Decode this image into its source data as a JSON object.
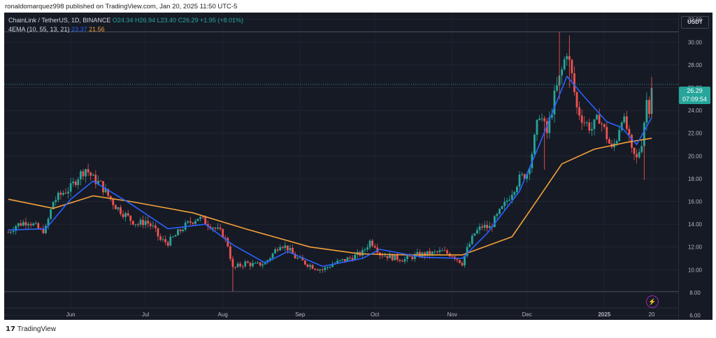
{
  "publish_line": "ronaldomarquez998 published on TradingView.com, Jan 20, 2025 11:50 UTC-5",
  "legend": {
    "symbol": "ChainLink / TetherUS, 1D, BINANCE",
    "ohlc": "O24.34 H26.94 L23.40 C26.29 +1.95 (+8.01%)",
    "ema_label": "4EMA (10, 55, 13, 21)",
    "ema_fast_value": "23.37",
    "ema_slow_value": "21.56"
  },
  "currency": "USDT",
  "last_price": "26.29",
  "countdown": "07:09:54",
  "footer_brand": "TradingView",
  "colors": {
    "up": "#26a69a",
    "down": "#ef5350",
    "ema_fast": "#2962ff",
    "ema_slow": "#f2a03a",
    "background": "#161a25"
  },
  "chart_data": {
    "type": "candlestick",
    "y_ticks": [
      "32.00",
      "30.00",
      "28.00",
      "26.00",
      "24.00",
      "22.00",
      "20.00",
      "18.00",
      "16.00",
      "14.00",
      "12.00",
      "10.00",
      "8.00",
      "6.00"
    ],
    "ylim": [
      5.6,
      32.6
    ],
    "x_ticks": [
      "Jun",
      "Jul",
      "Aug",
      "Sep",
      "Oct",
      "Nov",
      "Dec",
      "2025",
      "20"
    ],
    "date_range": [
      "2024-05-07",
      "2025-01-20"
    ],
    "x_tick_dates": [
      "2024-06-01",
      "2024-07-01",
      "2024-08-01",
      "2024-09-01",
      "2024-10-01",
      "2024-11-01",
      "2024-12-01",
      "2025-01-01",
      "2025-01-20"
    ],
    "horizontal_lines": [
      30.9,
      8.1,
      26.29
    ],
    "close_path": [
      [
        "2024-05-07",
        13.3
      ],
      [
        "2024-05-10",
        13.9
      ],
      [
        "2024-05-15",
        14.3
      ],
      [
        "2024-05-20",
        13.4
      ],
      [
        "2024-05-22",
        13.6
      ],
      [
        "2024-05-25",
        16.0
      ],
      [
        "2024-05-29",
        16.8
      ],
      [
        "2024-06-01",
        17.2
      ],
      [
        "2024-06-04",
        18.2
      ],
      [
        "2024-06-07",
        18.9
      ],
      [
        "2024-06-10",
        18.0
      ],
      [
        "2024-06-13",
        17.5
      ],
      [
        "2024-06-16",
        16.5
      ],
      [
        "2024-06-19",
        15.6
      ],
      [
        "2024-06-22",
        15.0
      ],
      [
        "2024-06-25",
        14.4
      ],
      [
        "2024-06-28",
        14.0
      ],
      [
        "2024-07-01",
        14.3
      ],
      [
        "2024-07-04",
        13.7
      ],
      [
        "2024-07-07",
        12.6
      ],
      [
        "2024-07-10",
        12.4
      ],
      [
        "2024-07-13",
        13.0
      ],
      [
        "2024-07-16",
        13.7
      ],
      [
        "2024-07-19",
        14.2
      ],
      [
        "2024-07-22",
        14.6
      ],
      [
        "2024-07-25",
        14.2
      ],
      [
        "2024-07-28",
        13.8
      ],
      [
        "2024-08-01",
        13.1
      ],
      [
        "2024-08-03",
        12.2
      ],
      [
        "2024-08-05",
        10.1
      ],
      [
        "2024-08-07",
        10.3
      ],
      [
        "2024-08-10",
        10.6
      ],
      [
        "2024-08-14",
        10.4
      ],
      [
        "2024-08-18",
        10.6
      ],
      [
        "2024-08-21",
        11.4
      ],
      [
        "2024-08-24",
        12.3
      ],
      [
        "2024-08-27",
        11.9
      ],
      [
        "2024-08-30",
        11.1
      ],
      [
        "2024-09-03",
        10.6
      ],
      [
        "2024-09-07",
        10.2
      ],
      [
        "2024-09-10",
        10.0
      ],
      [
        "2024-09-14",
        10.5
      ],
      [
        "2024-09-18",
        10.8
      ],
      [
        "2024-09-22",
        11.1
      ],
      [
        "2024-09-26",
        11.5
      ],
      [
        "2024-09-29",
        12.5
      ],
      [
        "2024-10-01",
        12.2
      ],
      [
        "2024-10-03",
        11.4
      ],
      [
        "2024-10-08",
        11.1
      ],
      [
        "2024-10-13",
        10.9
      ],
      [
        "2024-10-18",
        11.3
      ],
      [
        "2024-10-23",
        11.4
      ],
      [
        "2024-10-28",
        11.6
      ],
      [
        "2024-11-01",
        11.3
      ],
      [
        "2024-11-05",
        10.6
      ],
      [
        "2024-11-07",
        11.8
      ],
      [
        "2024-11-10",
        13.2
      ],
      [
        "2024-11-13",
        13.8
      ],
      [
        "2024-11-16",
        13.7
      ],
      [
        "2024-11-19",
        14.7
      ],
      [
        "2024-11-22",
        15.7
      ],
      [
        "2024-11-25",
        16.9
      ],
      [
        "2024-11-28",
        18.0
      ],
      [
        "2024-12-01",
        18.5
      ],
      [
        "2024-12-03",
        20.3
      ],
      [
        "2024-12-06",
        23.8
      ],
      [
        "2024-12-09",
        22.0
      ],
      [
        "2024-12-12",
        25.2
      ],
      [
        "2024-12-15",
        27.5
      ],
      [
        "2024-12-17",
        29.3
      ],
      [
        "2024-12-19",
        27.0
      ],
      [
        "2024-12-21",
        24.2
      ],
      [
        "2024-12-24",
        23.0
      ],
      [
        "2024-12-27",
        22.4
      ],
      [
        "2024-12-30",
        23.4
      ],
      [
        "2025-01-02",
        21.7
      ],
      [
        "2025-01-04",
        20.5
      ],
      [
        "2025-01-06",
        21.6
      ],
      [
        "2025-01-08",
        23.5
      ],
      [
        "2025-01-10",
        22.4
      ],
      [
        "2025-01-12",
        20.3
      ],
      [
        "2025-01-14",
        19.7
      ],
      [
        "2025-01-16",
        21.3
      ],
      [
        "2025-01-18",
        24.9
      ],
      [
        "2025-01-19",
        24.3
      ],
      [
        "2025-01-20",
        26.29
      ]
    ],
    "ema_fast": [
      [
        "2024-05-07",
        13.5
      ],
      [
        "2024-05-22",
        13.6
      ],
      [
        "2024-06-01",
        16.2
      ],
      [
        "2024-06-10",
        17.8
      ],
      [
        "2024-06-25",
        15.8
      ],
      [
        "2024-07-10",
        13.6
      ],
      [
        "2024-07-25",
        14.0
      ],
      [
        "2024-08-05",
        12.2
      ],
      [
        "2024-08-18",
        10.6
      ],
      [
        "2024-08-27",
        11.6
      ],
      [
        "2024-09-10",
        10.3
      ],
      [
        "2024-09-26",
        11.0
      ],
      [
        "2024-10-03",
        11.8
      ],
      [
        "2024-10-20",
        11.1
      ],
      [
        "2024-11-05",
        11.0
      ],
      [
        "2024-11-15",
        13.2
      ],
      [
        "2024-11-28",
        16.9
      ],
      [
        "2024-12-06",
        21.0
      ],
      [
        "2024-12-17",
        27.0
      ],
      [
        "2024-12-24",
        25.2
      ],
      [
        "2025-01-02",
        23.0
      ],
      [
        "2025-01-08",
        22.5
      ],
      [
        "2025-01-14",
        21.0
      ],
      [
        "2025-01-20",
        23.37
      ]
    ],
    "ema_slow": [
      [
        "2024-05-07",
        16.2
      ],
      [
        "2024-05-25",
        15.4
      ],
      [
        "2024-06-10",
        16.5
      ],
      [
        "2024-06-25",
        16.0
      ],
      [
        "2024-07-20",
        15.0
      ],
      [
        "2024-08-10",
        13.6
      ],
      [
        "2024-09-05",
        12.0
      ],
      [
        "2024-09-25",
        11.4
      ],
      [
        "2024-10-15",
        11.3
      ],
      [
        "2024-11-05",
        11.3
      ],
      [
        "2024-11-25",
        12.9
      ],
      [
        "2024-12-05",
        16.1
      ],
      [
        "2024-12-15",
        19.3
      ],
      [
        "2024-12-28",
        20.6
      ],
      [
        "2025-01-10",
        21.2
      ],
      [
        "2025-01-20",
        21.56
      ]
    ],
    "spikes": [
      [
        "2024-08-05",
        8.1,
        11.2
      ],
      [
        "2024-12-14",
        25.0,
        30.9
      ],
      [
        "2024-12-18",
        26.0,
        30.6
      ],
      [
        "2025-01-17",
        17.9,
        21.0
      ],
      [
        "2025-01-20",
        23.4,
        26.94
      ],
      [
        "2024-12-08",
        18.8,
        23.5
      ]
    ]
  }
}
